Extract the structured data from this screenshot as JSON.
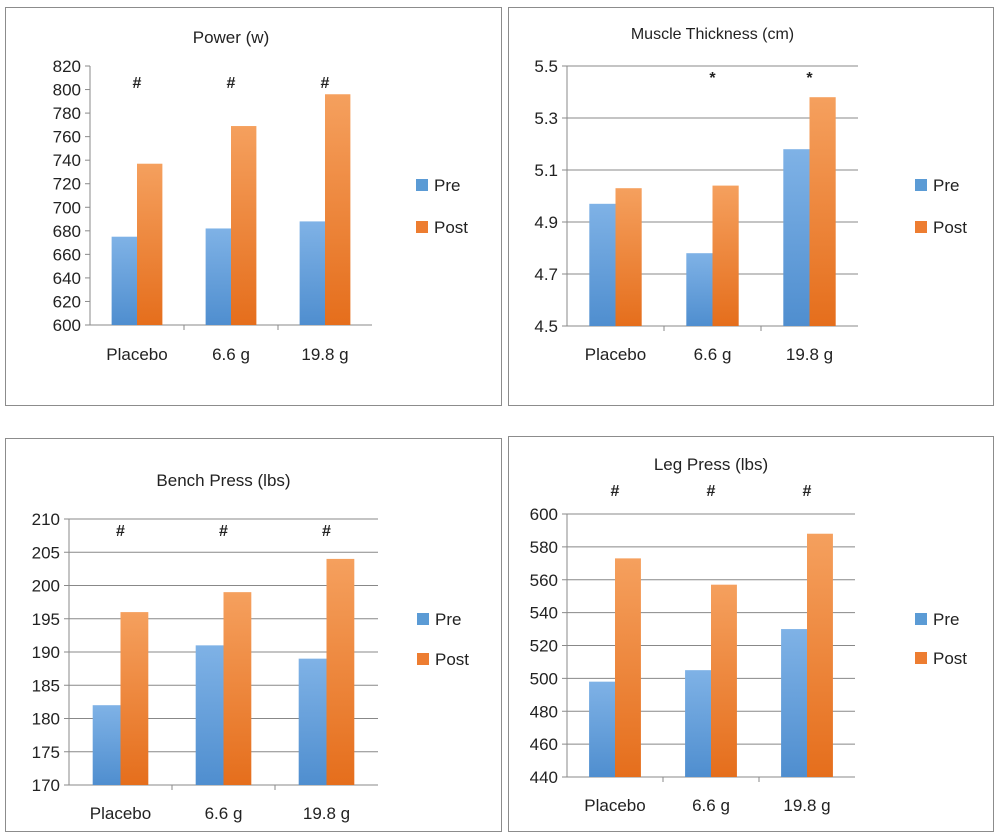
{
  "colors": {
    "pre": "#5b9bd5",
    "post": "#ed7d31",
    "grid": "#888888",
    "axis": "#8a8a8a"
  },
  "chart_data": [
    {
      "type": "bar",
      "title": "Power (w)",
      "categories": [
        "Placebo",
        "6.6 g",
        "19.8 g"
      ],
      "series": [
        {
          "name": "Pre",
          "values": [
            675,
            682,
            688
          ]
        },
        {
          "name": "Post",
          "values": [
            737,
            769,
            796
          ]
        }
      ],
      "ylim": [
        600,
        820
      ],
      "yticks": [
        "600",
        "620",
        "640",
        "660",
        "680",
        "700",
        "720",
        "740",
        "760",
        "780",
        "800",
        "820"
      ],
      "annotations": [
        "#",
        "#",
        "#"
      ],
      "legend": "right",
      "grid": false
    },
    {
      "type": "bar",
      "title": "Muscle Thickness (cm)",
      "categories": [
        "Placebo",
        "6.6 g",
        "19.8 g"
      ],
      "series": [
        {
          "name": "Pre",
          "values": [
            4.97,
            4.78,
            5.18
          ]
        },
        {
          "name": "Post",
          "values": [
            5.03,
            5.04,
            5.38
          ]
        }
      ],
      "ylim": [
        4.5,
        5.5
      ],
      "yticks": [
        "4.5",
        "4.7",
        "4.9",
        "5.1",
        "5.3",
        "5.5"
      ],
      "annotations": [
        "",
        "*",
        "*"
      ],
      "legend": "right",
      "grid": true
    },
    {
      "type": "bar",
      "title": "Bench Press (lbs)",
      "categories": [
        "Placebo",
        "6.6 g",
        "19.8 g"
      ],
      "series": [
        {
          "name": "Pre",
          "values": [
            182,
            191,
            189
          ]
        },
        {
          "name": "Post",
          "values": [
            196,
            199,
            204
          ]
        }
      ],
      "ylim": [
        170,
        210
      ],
      "yticks": [
        "170",
        "175",
        "180",
        "185",
        "190",
        "195",
        "200",
        "205",
        "210"
      ],
      "annotations": [
        "#",
        "#",
        "#"
      ],
      "legend": "right",
      "grid": true
    },
    {
      "type": "bar",
      "title": "Leg Press (lbs)",
      "categories": [
        "Placebo",
        "6.6 g",
        "19.8 g"
      ],
      "series": [
        {
          "name": "Pre",
          "values": [
            498,
            505,
            530
          ]
        },
        {
          "name": "Post",
          "values": [
            573,
            557,
            588
          ]
        }
      ],
      "ylim": [
        440,
        600
      ],
      "yticks": [
        "440",
        "460",
        "480",
        "500",
        "520",
        "540",
        "560",
        "580",
        "600"
      ],
      "annotations": [
        "#",
        "#",
        "#"
      ],
      "legend": "right",
      "grid": true
    }
  ]
}
